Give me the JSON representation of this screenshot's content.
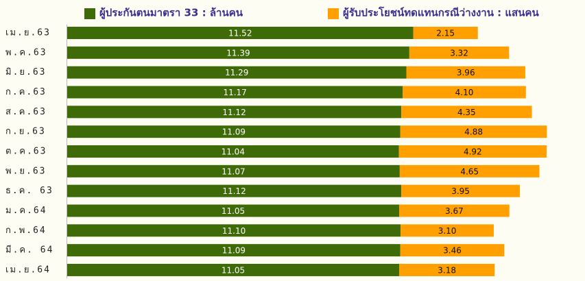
{
  "chart_data": {
    "type": "stacked-bar-horizontal",
    "categories": [
      "เม.ย.63",
      "พ.ค.63",
      "มิ.ย.63",
      "ก.ค.63",
      "ส.ค.63",
      "ก.ย.63",
      "ต.ค.63",
      "พ.ย.63",
      "ธ.ค. 63",
      "ม.ค.64",
      "ก.พ.64",
      "มี.ค. 64",
      "เม.ย.64"
    ],
    "series": [
      {
        "name": "ผู้ประกันตนมาตรา 33 : ล้านคน",
        "color": "#3f6a08",
        "values": [
          11.52,
          11.39,
          11.29,
          11.17,
          11.12,
          11.09,
          11.04,
          11.07,
          11.12,
          11.05,
          11.1,
          11.09,
          11.05
        ],
        "value_labels": [
          "11.52",
          "11.39",
          "11.29",
          "11.17",
          "11.12",
          "11.09",
          "11.04",
          "11.07",
          "11.12",
          "11.05",
          "11.10",
          "11.09",
          "11.05"
        ]
      },
      {
        "name": "ผู้รับประโยชน์ทดแทนกรณีว่างงาน : แสนคน",
        "color": "#ffa000",
        "values": [
          2.15,
          3.32,
          3.96,
          4.1,
          4.35,
          4.88,
          4.92,
          4.65,
          3.95,
          3.67,
          3.1,
          3.46,
          3.18
        ],
        "value_labels": [
          "2.15",
          "3.32",
          "3.96",
          "4.10",
          "4.35",
          "4.88",
          "4.92",
          "4.65",
          "3.95",
          "3.67",
          "3.10",
          "3.46",
          "3.18"
        ]
      }
    ]
  }
}
